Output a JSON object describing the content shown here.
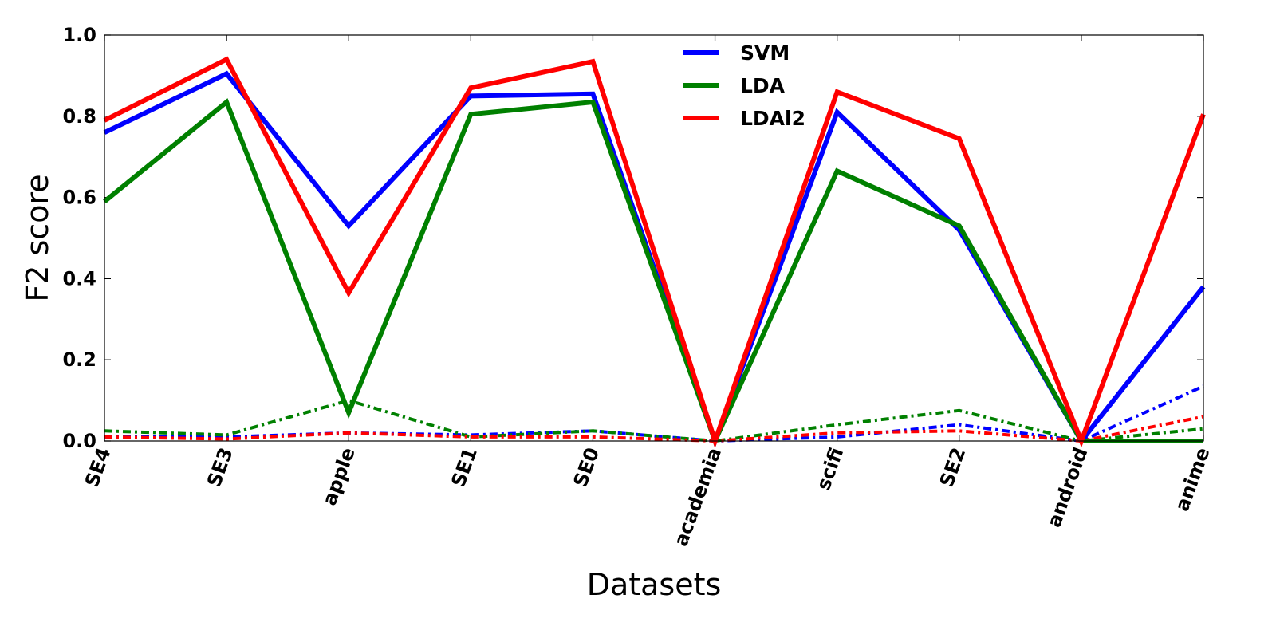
{
  "chart_data": {
    "type": "line",
    "title": "",
    "xlabel": "Datasets",
    "ylabel": "F2 score",
    "ylim": [
      0.0,
      1.0
    ],
    "yticks": [
      "0.0",
      "0.2",
      "0.4",
      "0.6",
      "0.8",
      "1.0"
    ],
    "categories": [
      "SE4",
      "SE3",
      "apple",
      "SE1",
      "SE0",
      "academia",
      "scifi",
      "SE2",
      "android",
      "anime"
    ],
    "grid": false,
    "legend": "top-center",
    "series": [
      {
        "name": "SVM",
        "color": "#0000ff",
        "style": "solid",
        "values": [
          0.76,
          0.905,
          0.53,
          0.85,
          0.855,
          0.0,
          0.81,
          0.52,
          0.0,
          0.38
        ]
      },
      {
        "name": "LDA",
        "color": "#008000",
        "style": "solid",
        "values": [
          0.59,
          0.835,
          0.07,
          0.805,
          0.835,
          0.0,
          0.665,
          0.53,
          0.0,
          0.0
        ]
      },
      {
        "name": "LDAl2",
        "color": "#ff0000",
        "style": "solid",
        "values": [
          0.79,
          0.94,
          0.365,
          0.87,
          0.935,
          0.0,
          0.86,
          0.745,
          0.0,
          0.805
        ]
      },
      {
        "name": "",
        "color": "#0000ff",
        "style": "dashdot",
        "values": [
          0.01,
          0.01,
          0.02,
          0.015,
          0.025,
          0.0,
          0.01,
          0.04,
          0.0,
          0.135
        ]
      },
      {
        "name": "",
        "color": "#008000",
        "style": "dashdot",
        "values": [
          0.025,
          0.015,
          0.1,
          0.01,
          0.025,
          0.0,
          0.04,
          0.075,
          0.0,
          0.03
        ]
      },
      {
        "name": "",
        "color": "#ff0000",
        "style": "dashdot",
        "values": [
          0.01,
          0.005,
          0.02,
          0.01,
          0.01,
          0.0,
          0.02,
          0.025,
          0.0,
          0.06
        ]
      }
    ]
  }
}
